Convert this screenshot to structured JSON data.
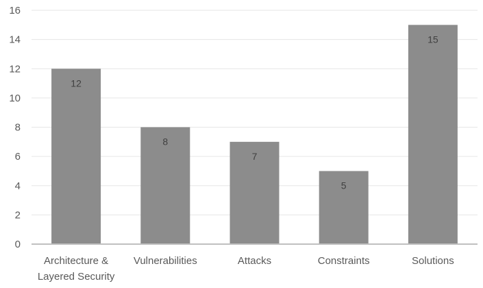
{
  "chart_data": {
    "type": "bar",
    "title": "",
    "xlabel": "",
    "ylabel": "",
    "categories": [
      [
        "Architecture &",
        "Layered Security"
      ],
      [
        "Vulnerabilities"
      ],
      [
        "Attacks"
      ],
      [
        "Constraints"
      ],
      [
        "Solutions"
      ]
    ],
    "values": [
      12,
      8,
      7,
      5,
      15
    ],
    "ylim": [
      0,
      16
    ],
    "yticks": [
      0,
      2,
      4,
      6,
      8,
      10,
      12,
      14,
      16
    ],
    "grid": true,
    "legend": "none",
    "data_labels": true,
    "colors": {
      "bar": "#8c8c8c",
      "grid": "#e6e6e6",
      "axis": "#bfbfbf"
    }
  }
}
